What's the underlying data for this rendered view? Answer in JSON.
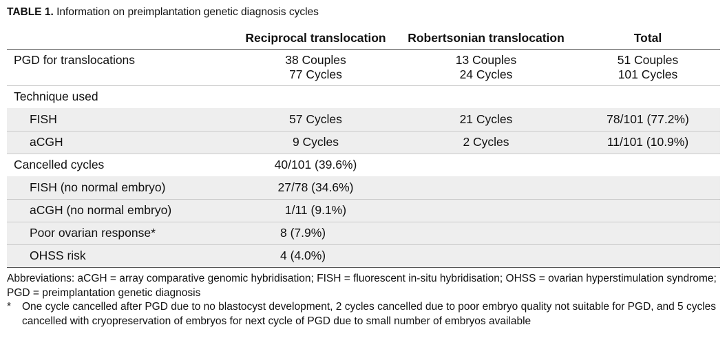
{
  "caption": {
    "label": "TABLE 1.",
    "text": "Information on preimplantation genetic diagnosis cycles"
  },
  "headers": [
    "",
    "Reciprocal translocation",
    "Robertsonian translocation",
    "Total"
  ],
  "rows": [
    {
      "label": "PGD for translocations",
      "reciprocal": [
        "38 Couples",
        "77 Cycles"
      ],
      "robertsonian": [
        "13 Couples",
        "24 Cycles"
      ],
      "total": [
        "51 Couples",
        "101 Cycles"
      ]
    },
    {
      "label": "Technique used",
      "reciprocal": "",
      "robertsonian": "",
      "total": ""
    },
    {
      "label": "FISH",
      "reciprocal": "57 Cycles",
      "robertsonian": "21 Cycles",
      "total": "78/101 (77.2%)"
    },
    {
      "label": "aCGH",
      "reciprocal": "9 Cycles",
      "robertsonian": "2 Cycles",
      "total": "11/101 (10.9%)"
    },
    {
      "label": "Cancelled cycles",
      "reciprocal": "40/101 (39.6%)",
      "robertsonian": "",
      "total": ""
    },
    {
      "label": "FISH (no normal embryo)",
      "reciprocal": "27/78 (34.6%)",
      "robertsonian": "",
      "total": ""
    },
    {
      "label": "aCGH (no normal embryo)",
      "reciprocal": "1/11 (9.1%)",
      "robertsonian": "",
      "total": ""
    },
    {
      "label": "Poor ovarian response*",
      "reciprocal": "8 (7.9%)",
      "robertsonian": "",
      "total": ""
    },
    {
      "label": "OHSS risk",
      "reciprocal": "4 (4.0%)",
      "robertsonian": "",
      "total": ""
    }
  ],
  "notes": {
    "abbreviations": "Abbreviations: aCGH = array comparative genomic hybridisation; FISH = fluorescent in-situ hybridisation; OHSS = ovarian hyperstimulation syndrome; PGD = preimplantation genetic diagnosis",
    "footnote_mark": "*",
    "footnote": "One cycle cancelled after PGD due to no blastocyst development, 2 cycles cancelled due to poor embryo quality not suitable for PGD, and 5 cycles cancelled with cryopreservation of embryos for next cycle of PGD due to small number of embryos available"
  }
}
